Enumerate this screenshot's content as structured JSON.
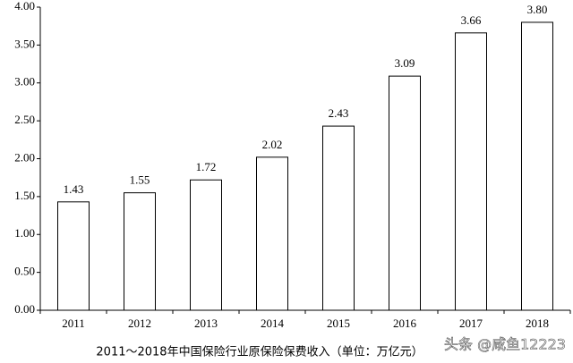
{
  "chart_data": {
    "type": "bar",
    "title": "2011～2018年中国保险行业原保险保费收入（单位：万亿元）",
    "watermark": "头条 @咸鱼12223",
    "categories": [
      "2011",
      "2012",
      "2013",
      "2014",
      "2015",
      "2016",
      "2017",
      "2018"
    ],
    "values": [
      1.43,
      1.55,
      1.72,
      2.02,
      2.43,
      3.09,
      3.66,
      3.8
    ],
    "value_labels": [
      "1.43",
      "1.55",
      "1.72",
      "2.02",
      "2.43",
      "3.09",
      "3.66",
      "3.80"
    ],
    "color": "#ffffff",
    "ylim": [
      0,
      4
    ],
    "yticks": [
      {
        "value": 0,
        "label": "0.00"
      },
      {
        "value": 0.5,
        "label": "0.50"
      },
      {
        "value": 1,
        "label": "1.00"
      },
      {
        "value": 1.5,
        "label": "1.50"
      },
      {
        "value": 2,
        "label": "2.00"
      },
      {
        "value": 2.5,
        "label": "2.50"
      },
      {
        "value": 3,
        "label": "3.00"
      },
      {
        "value": 3.5,
        "label": "3.50"
      },
      {
        "value": 4,
        "label": "4.00"
      }
    ],
    "grid": false
  }
}
